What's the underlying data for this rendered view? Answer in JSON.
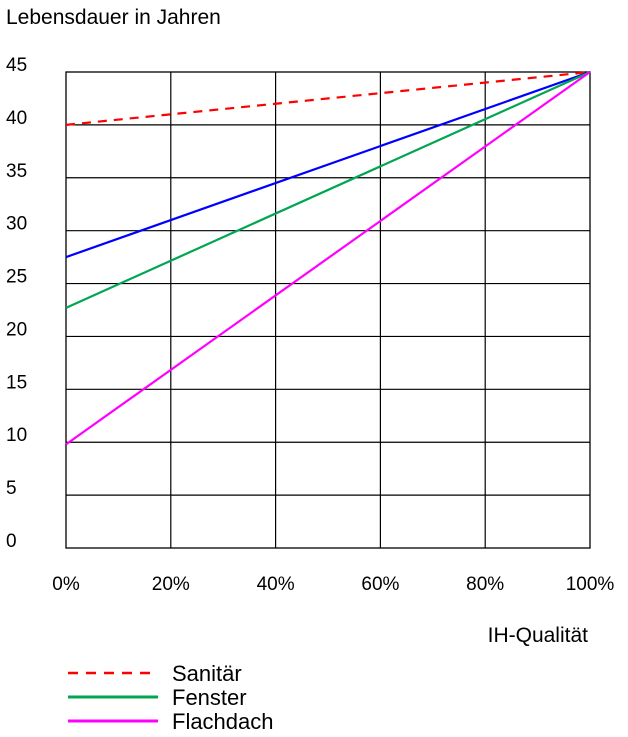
{
  "chart_data": {
    "type": "line",
    "title": "",
    "ylabel": "Lebensdauer in Jahren",
    "xlabel": "IH-Qualität",
    "x": [
      0,
      100
    ],
    "x_ticks": [
      0,
      20,
      40,
      60,
      80,
      100
    ],
    "x_tick_labels": [
      "0%",
      "20%",
      "40%",
      "60%",
      "80%",
      "100%"
    ],
    "y_ticks": [
      0,
      5,
      10,
      15,
      20,
      25,
      30,
      35,
      40,
      45
    ],
    "y_tick_labels": [
      "0",
      "5",
      "10",
      "15",
      "20",
      "25",
      "30",
      "35",
      "40",
      "45"
    ],
    "xlim": [
      0,
      100
    ],
    "ylim": [
      0,
      45
    ],
    "grid": true,
    "legend_position": "bottom-left",
    "series": [
      {
        "key": "sanitaer",
        "name": "Sanitär",
        "values": [
          40,
          45
        ],
        "color": "#ff0000",
        "dashed": true,
        "in_legend": true
      },
      {
        "key": "blue",
        "name": "",
        "values": [
          27.5,
          45
        ],
        "color": "#0000ff",
        "dashed": false,
        "in_legend": false
      },
      {
        "key": "fenster",
        "name": "Fenster",
        "values": [
          22.7,
          45
        ],
        "color": "#00a651",
        "dashed": false,
        "in_legend": true
      },
      {
        "key": "flachdach",
        "name": "Flachdach",
        "values": [
          9.8,
          45
        ],
        "color": "#ff00ff",
        "dashed": false,
        "in_legend": true
      }
    ]
  }
}
